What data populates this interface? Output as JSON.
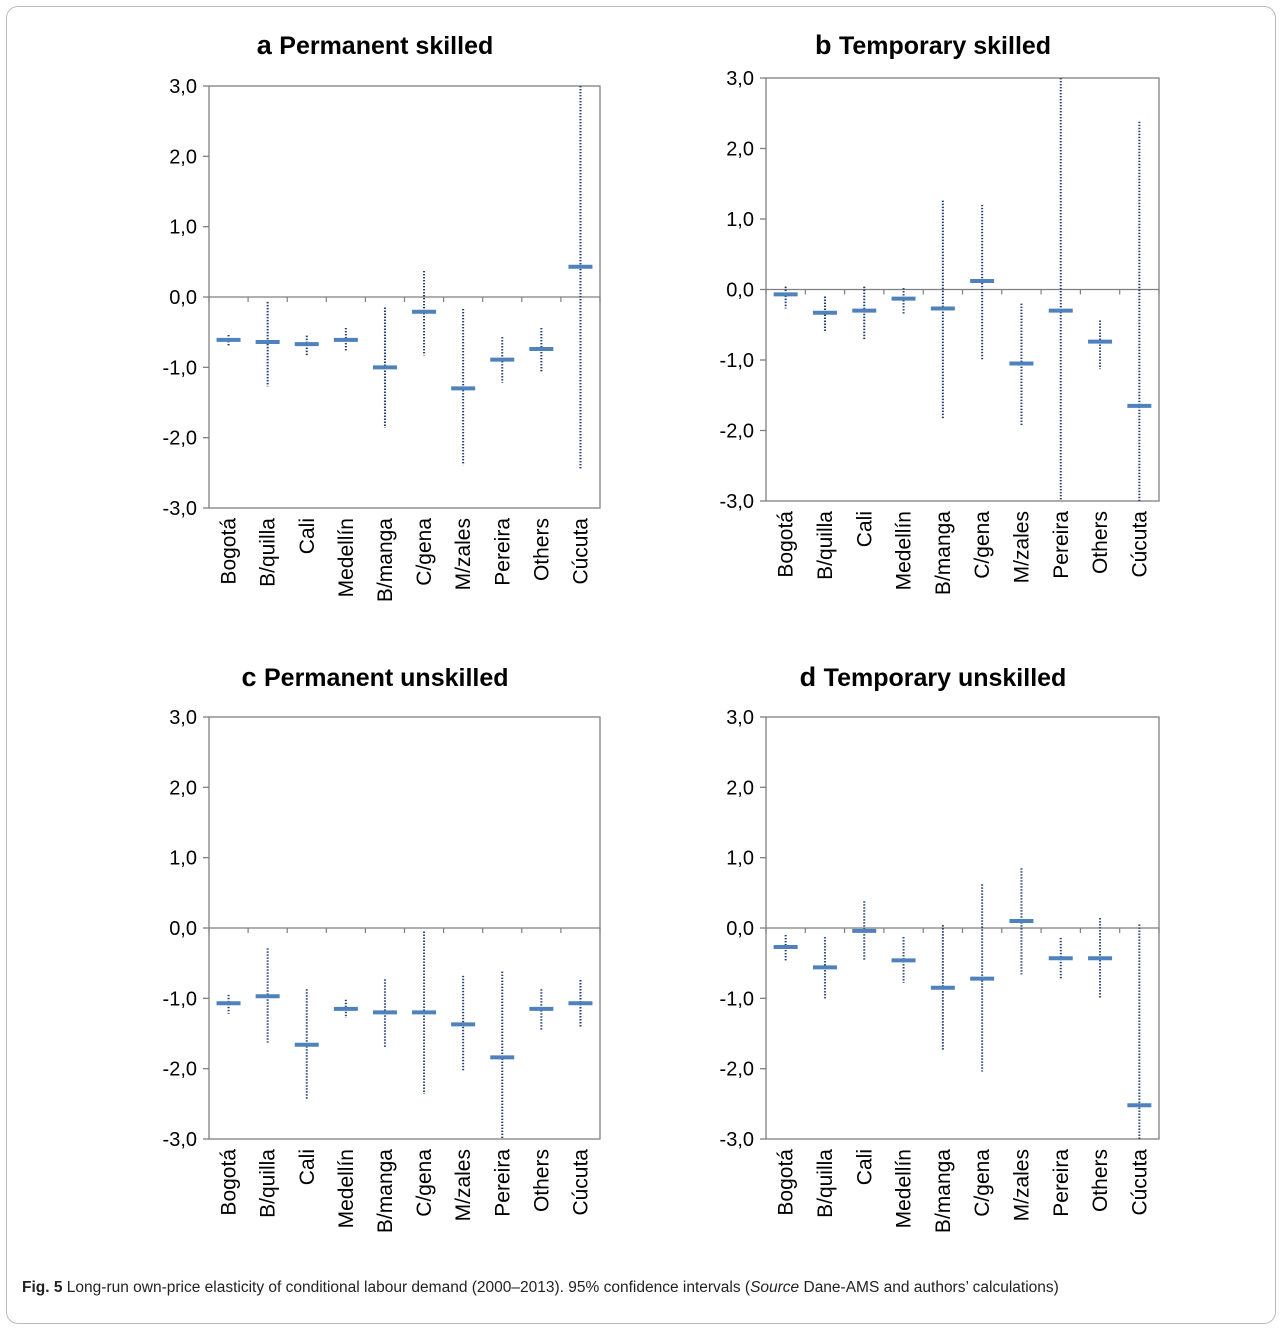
{
  "chart_data": [
    {
      "type": "error_bar",
      "panel_letter": "a",
      "title": "Permanent skilled",
      "categories": [
        "Bogotá",
        "B/quilla",
        "Cali",
        "Medellín",
        "B/manga",
        "C/gena",
        "M/zales",
        "Pereira",
        "Others",
        "Cúcuta"
      ],
      "values": [
        -0.61,
        -0.64,
        -0.67,
        -0.61,
        -1.0,
        -0.21,
        -1.3,
        -0.89,
        -0.74,
        0.43
      ],
      "lower": [
        -0.69,
        -1.27,
        -0.83,
        -0.78,
        -1.86,
        -0.83,
        -2.39,
        -1.22,
        -1.08,
        -2.44
      ],
      "upper": [
        -0.54,
        -0.07,
        -0.55,
        -0.44,
        -0.15,
        0.37,
        -0.17,
        -0.57,
        -0.44,
        3.0
      ],
      "ylim": [
        -3.0,
        3.0
      ],
      "yticks": [
        "3,0",
        "2,0",
        "1,0",
        "0,0",
        "-1,0",
        "-2,0",
        "-3,0"
      ]
    },
    {
      "type": "error_bar",
      "panel_letter": "b",
      "title": "Temporary skilled",
      "categories": [
        "Bogotá",
        "B/quilla",
        "Cali",
        "Medellín",
        "B/manga",
        "C/gena",
        "M/zales",
        "Pereira",
        "Others",
        "Cúcuta"
      ],
      "values": [
        -0.07,
        -0.33,
        -0.3,
        -0.13,
        -0.27,
        0.12,
        -1.05,
        -0.3,
        -0.74,
        -1.65
      ],
      "lower": [
        -0.27,
        -0.59,
        -0.72,
        -0.36,
        -1.84,
        -1.0,
        -1.93,
        -3.0,
        -1.13,
        -3.0
      ],
      "upper": [
        0.04,
        -0.1,
        0.04,
        0.02,
        1.26,
        1.2,
        -0.2,
        3.0,
        -0.44,
        2.38
      ],
      "ylim": [
        -3.0,
        3.0
      ],
      "yticks": [
        "3,0",
        "2,0",
        "1,0",
        "0,0",
        "-1,0",
        "-2,0",
        "-3,0"
      ]
    },
    {
      "type": "error_bar",
      "panel_letter": "c",
      "title": "Permanent unskilled",
      "categories": [
        "Bogotá",
        "B/quilla",
        "Cali",
        "Medellín",
        "B/manga",
        "C/gena",
        "M/zales",
        "Pereira",
        "Others",
        "Cúcuta"
      ],
      "values": [
        -1.07,
        -0.97,
        -1.66,
        -1.15,
        -1.2,
        -1.2,
        -1.37,
        -1.84,
        -1.15,
        -1.07
      ],
      "lower": [
        -1.22,
        -1.63,
        -2.44,
        -1.28,
        -1.69,
        -2.36,
        -2.04,
        -3.0,
        -1.45,
        -1.4
      ],
      "upper": [
        -0.95,
        -0.29,
        -0.87,
        -1.02,
        -0.73,
        -0.05,
        -0.68,
        -0.62,
        -0.87,
        -0.74
      ],
      "ylim": [
        -3.0,
        3.0
      ],
      "yticks": [
        "3,0",
        "2,0",
        "1,0",
        "0,0",
        "-1,0",
        "-2,0",
        "-3,0"
      ]
    },
    {
      "type": "error_bar",
      "panel_letter": "d",
      "title": "Temporary unskilled",
      "categories": [
        "Bogotá",
        "B/quilla",
        "Cali",
        "Medellín",
        "B/manga",
        "C/gena",
        "M/zales",
        "Pereira",
        "Others",
        "Cúcuta"
      ],
      "values": [
        -0.27,
        -0.56,
        -0.04,
        -0.46,
        -0.85,
        -0.72,
        0.1,
        -0.43,
        -0.43,
        -2.52
      ],
      "lower": [
        -0.46,
        -1.0,
        -0.47,
        -0.78,
        -1.75,
        -2.04,
        -0.66,
        -0.74,
        -1.01,
        -3.0
      ],
      "upper": [
        -0.1,
        -0.13,
        0.38,
        -0.13,
        0.04,
        0.62,
        0.85,
        -0.14,
        0.14,
        0.05
      ],
      "ylim": [
        -3.0,
        3.0
      ],
      "yticks": [
        "3,0",
        "2,0",
        "1,0",
        "0,0",
        "-1,0",
        "-2,0",
        "-3,0"
      ]
    }
  ],
  "caption": {
    "label": "Fig. 5",
    "text_before": "Long-run own-price elasticity of conditional labour demand (2000–2013). 95% confidence intervals (",
    "source_word": "Source",
    "text_after": " Dane-AMS and authors’ calculations)"
  },
  "colors": {
    "marker": "#4f81bd",
    "interval": "#1f3b73",
    "axis": "#7f7f7f"
  }
}
